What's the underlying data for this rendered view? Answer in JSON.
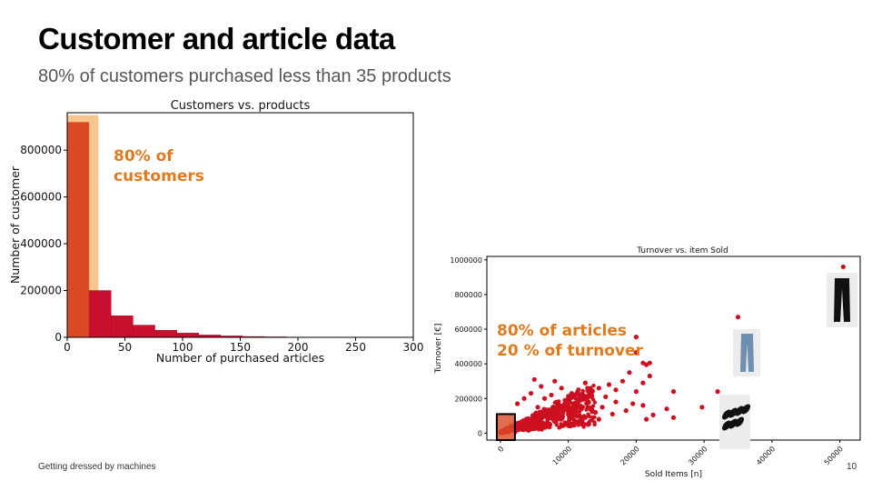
{
  "slide": {
    "title": "Customer and article data",
    "subtitle": "80% of customers purchased less than 35 products",
    "footer": "Getting dressed by machines",
    "page_number": "10"
  },
  "colors": {
    "accent_orange": "#e07a1f",
    "highlight_band": "#f7c58d",
    "bar_red": "#c8102e",
    "bar_first": "#d94a25",
    "point_red": "#cc1020"
  },
  "chart_data": [
    {
      "type": "bar",
      "title": "Customers vs. products",
      "xlabel": "Number of purchased articles",
      "ylabel": "Number of customer",
      "xlim": [
        0,
        300
      ],
      "ylim": [
        0,
        960000
      ],
      "xticks": [
        0,
        50,
        100,
        150,
        200,
        250,
        300
      ],
      "yticks": [
        0,
        200000,
        400000,
        600000,
        800000
      ],
      "bins": [
        {
          "start": 0,
          "end": 19,
          "value": 920000
        },
        {
          "start": 19,
          "end": 38,
          "value": 200000
        },
        {
          "start": 38,
          "end": 57,
          "value": 92000
        },
        {
          "start": 57,
          "end": 76,
          "value": 52000
        },
        {
          "start": 76,
          "end": 95,
          "value": 30000
        },
        {
          "start": 95,
          "end": 114,
          "value": 18000
        },
        {
          "start": 114,
          "end": 133,
          "value": 10000
        },
        {
          "start": 133,
          "end": 152,
          "value": 6000
        },
        {
          "start": 152,
          "end": 171,
          "value": 3500
        },
        {
          "start": 171,
          "end": 190,
          "value": 2000
        },
        {
          "start": 190,
          "end": 209,
          "value": 1000
        },
        {
          "start": 209,
          "end": 228,
          "value": 500
        }
      ],
      "highlight": {
        "x_start": 0,
        "x_end": 27,
        "value": 950000
      },
      "annotation": {
        "line1": "80% of",
        "line2": "customers"
      },
      "grid": false
    },
    {
      "type": "scatter",
      "title": "Turnover vs. item Sold",
      "xlabel": "Sold Items [n]",
      "ylabel": "Turnover [€]",
      "xlim": [
        -2000,
        53000
      ],
      "ylim": [
        -40000,
        1020000
      ],
      "xticks": [
        0,
        10000,
        20000,
        30000,
        40000,
        50000
      ],
      "yticks": [
        0,
        200000,
        400000,
        600000,
        800000,
        1000000
      ],
      "points": [
        {
          "x": 50500,
          "y": 960000
        },
        {
          "x": 35000,
          "y": 670000
        },
        {
          "x": 20000,
          "y": 555000
        },
        {
          "x": 20000,
          "y": 465000
        },
        {
          "x": 19000,
          "y": 350000
        },
        {
          "x": 21000,
          "y": 405000
        },
        {
          "x": 21500,
          "y": 395000
        },
        {
          "x": 22000,
          "y": 405000
        },
        {
          "x": 22000,
          "y": 330000
        },
        {
          "x": 21000,
          "y": 290000
        },
        {
          "x": 20000,
          "y": 240000
        },
        {
          "x": 21000,
          "y": 160000
        },
        {
          "x": 24500,
          "y": 140000
        },
        {
          "x": 25500,
          "y": 240000
        },
        {
          "x": 25500,
          "y": 90000
        },
        {
          "x": 29700,
          "y": 150000
        },
        {
          "x": 32000,
          "y": 240000
        },
        {
          "x": 21500,
          "y": 80000
        },
        {
          "x": 22500,
          "y": 105000
        },
        {
          "x": 18000,
          "y": 300000
        },
        {
          "x": 17000,
          "y": 250000
        },
        {
          "x": 16000,
          "y": 280000
        },
        {
          "x": 15500,
          "y": 210000
        },
        {
          "x": 14500,
          "y": 260000
        },
        {
          "x": 13500,
          "y": 240000
        },
        {
          "x": 12500,
          "y": 290000
        },
        {
          "x": 11500,
          "y": 250000
        },
        {
          "x": 10500,
          "y": 230000
        },
        {
          "x": 8000,
          "y": 300000
        },
        {
          "x": 5000,
          "y": 310000
        },
        {
          "x": 6000,
          "y": 270000
        },
        {
          "x": 9000,
          "y": 260000
        },
        {
          "x": 13000,
          "y": 180000
        },
        {
          "x": 15000,
          "y": 150000
        },
        {
          "x": 17000,
          "y": 180000
        },
        {
          "x": 18500,
          "y": 130000
        },
        {
          "x": 19500,
          "y": 170000
        },
        {
          "x": 16500,
          "y": 110000
        },
        {
          "x": 14000,
          "y": 120000
        },
        {
          "x": 11000,
          "y": 150000
        },
        {
          "x": 12000,
          "y": 210000
        },
        {
          "x": 9500,
          "y": 190000
        },
        {
          "x": 7500,
          "y": 220000
        },
        {
          "x": 8500,
          "y": 170000
        },
        {
          "x": 6500,
          "y": 200000
        },
        {
          "x": 4500,
          "y": 230000
        },
        {
          "x": 3500,
          "y": 200000
        },
        {
          "x": 2500,
          "y": 170000
        },
        {
          "x": 5500,
          "y": 150000
        },
        {
          "x": 10000,
          "y": 110000
        },
        {
          "x": 12500,
          "y": 90000
        },
        {
          "x": 14500,
          "y": 80000
        }
      ],
      "dense_cluster": {
        "x_max": 14000,
        "y_slope": 14,
        "count": 700
      },
      "highlight_box": {
        "x_start": 0,
        "x_end": 1600,
        "y_start": -40000,
        "y_end": 110000
      },
      "annotation": {
        "line1": "80% of articles",
        "line2": "20 % of turnover"
      },
      "images": [
        "black-trousers-thumbnail",
        "blue-jeans-thumbnail",
        "black-socks-thumbnail"
      ],
      "grid": false
    }
  ]
}
